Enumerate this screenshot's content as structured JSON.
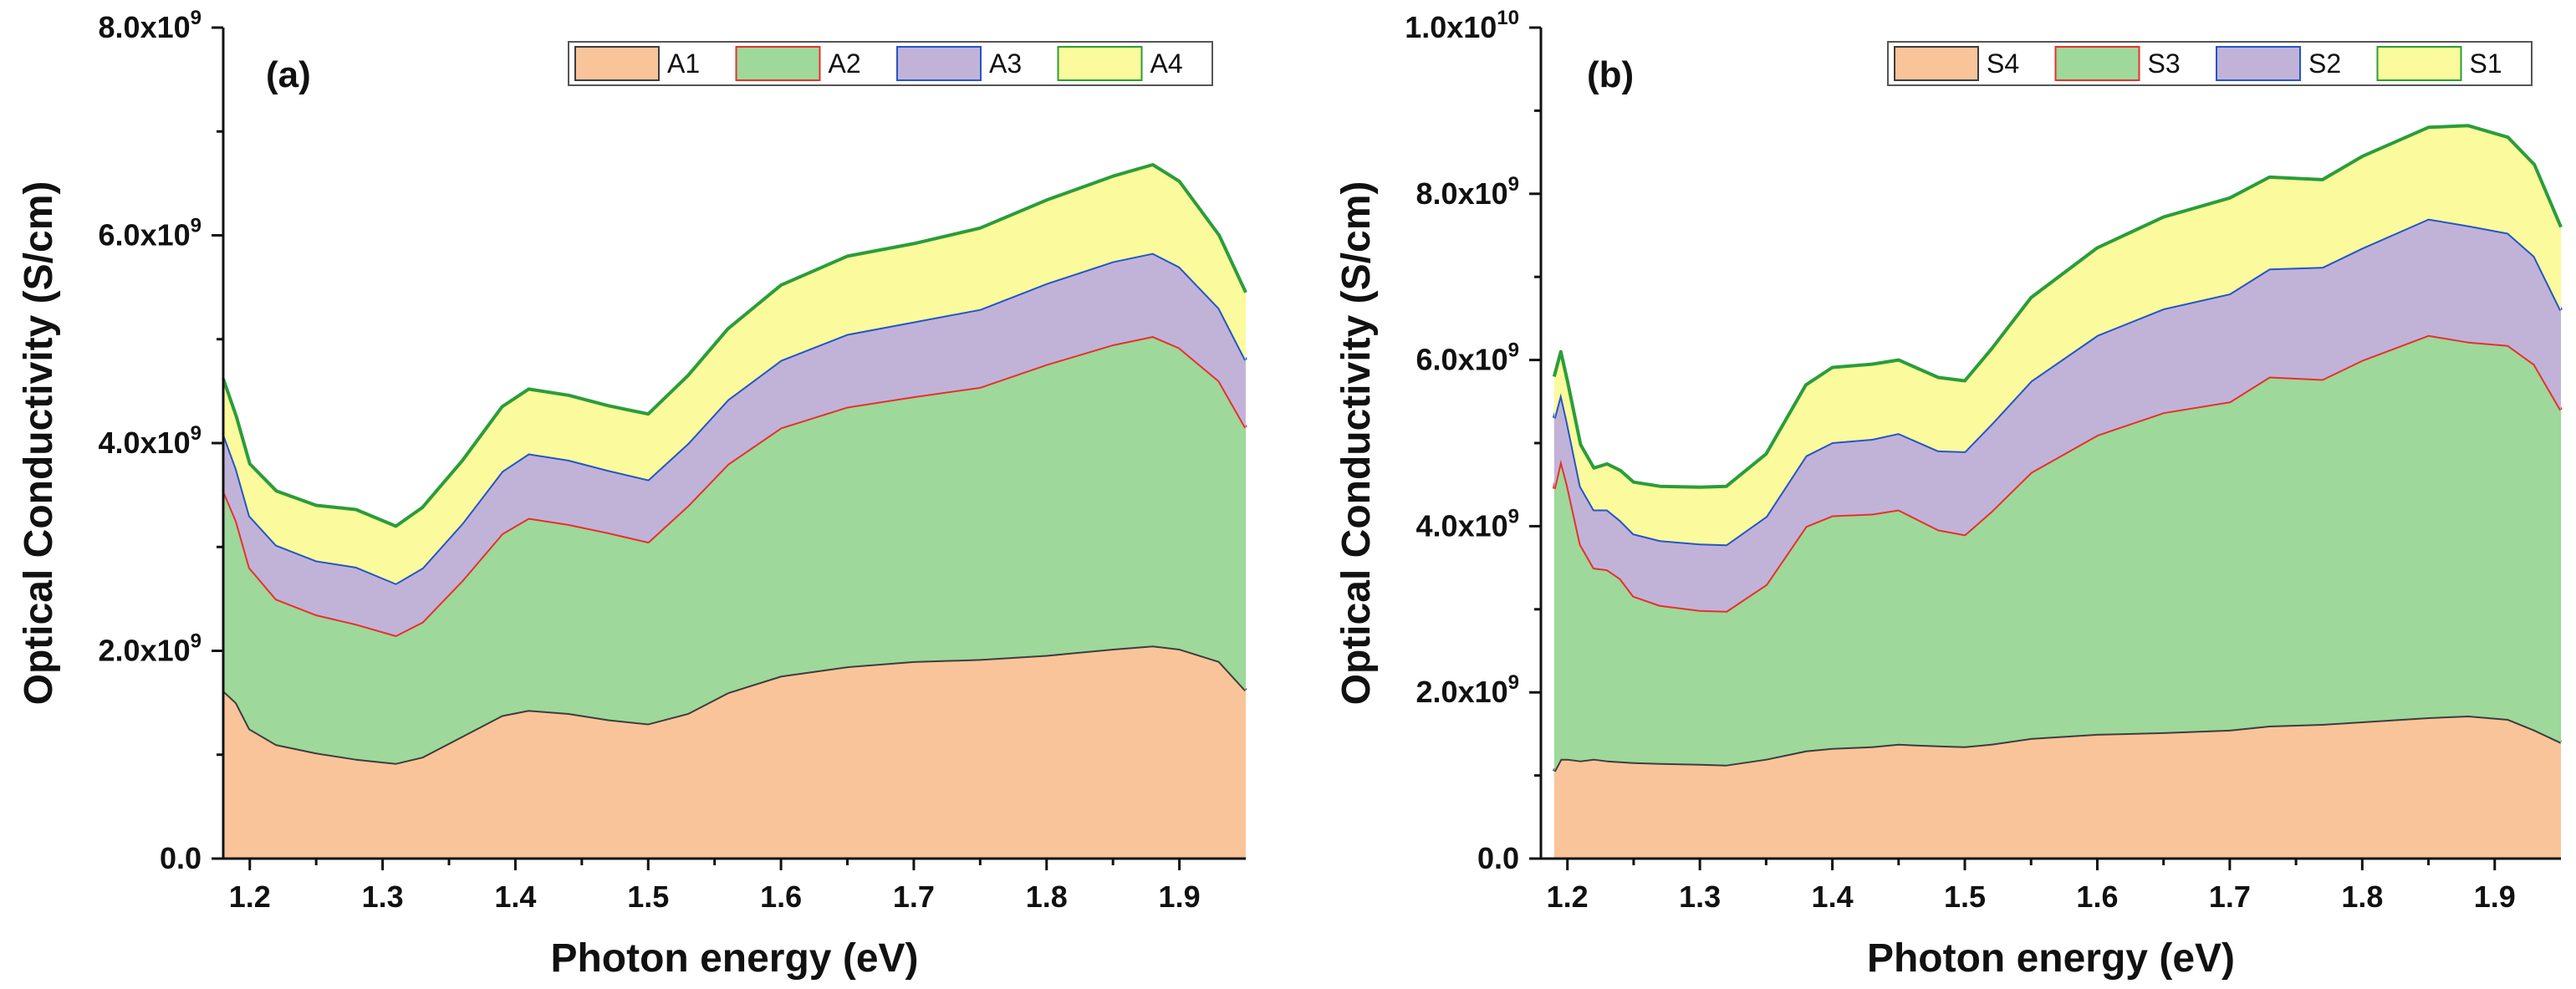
{
  "chart_data": [
    {
      "panel_label": "(a)",
      "type": "area",
      "stacked": true,
      "xlabel": "Photon energy (eV)",
      "ylabel": "Optical Conductivity (S/cm)",
      "xlim": [
        1.18,
        1.95
      ],
      "ylim": [
        0,
        8000000000.0
      ],
      "xticks": [
        "1.2",
        "1.3",
        "1.4",
        "1.5",
        "1.6",
        "1.7",
        "1.8",
        "1.9"
      ],
      "yticks": [
        {
          "mant": "0.0",
          "exp": ""
        },
        {
          "mant": "2.0x10",
          "exp": "9"
        },
        {
          "mant": "4.0x10",
          "exp": "9"
        },
        {
          "mant": "6.0x10",
          "exp": "9"
        },
        {
          "mant": "8.0x10",
          "exp": "9"
        }
      ],
      "legend_position": "top-right",
      "x": [
        1.18,
        1.19,
        1.2,
        1.22,
        1.25,
        1.28,
        1.31,
        1.33,
        1.36,
        1.39,
        1.41,
        1.44,
        1.47,
        1.5,
        1.53,
        1.56,
        1.6,
        1.65,
        1.7,
        1.75,
        1.8,
        1.85,
        1.88,
        1.9,
        1.93,
        1.95
      ],
      "series": [
        {
          "name": "A1",
          "fill": "#f9c49a",
          "line": "#3d3d3d",
          "values": [
            1620000000.0,
            1500000000.0,
            1250000000.0,
            1100000000.0,
            1020000000.0,
            960000000.0,
            920000000.0,
            980000000.0,
            1180000000.0,
            1380000000.0,
            1430000000.0,
            1400000000.0,
            1340000000.0,
            1300000000.0,
            1400000000.0,
            1600000000.0,
            1760000000.0,
            1850000000.0,
            1900000000.0,
            1920000000.0,
            1960000000.0,
            2020000000.0,
            2050000000.0,
            2020000000.0,
            1900000000.0,
            1620000000.0
          ]
        },
        {
          "name": "A2",
          "fill": "#9ed89b",
          "line": "#e8302b",
          "values": [
            1930000000.0,
            1750000000.0,
            1550000000.0,
            1400000000.0,
            1330000000.0,
            1300000000.0,
            1230000000.0,
            1300000000.0,
            1500000000.0,
            1750000000.0,
            1850000000.0,
            1820000000.0,
            1800000000.0,
            1750000000.0,
            2000000000.0,
            2200000000.0,
            2390000000.0,
            2500000000.0,
            2550000000.0,
            2620000000.0,
            2800000000.0,
            2930000000.0,
            2980000000.0,
            2900000000.0,
            2700000000.0,
            2530000000.0
          ]
        },
        {
          "name": "A3",
          "fill": "#c1b3d8",
          "line": "#2455c8",
          "values": [
            550000000.0,
            500000000.0,
            500000000.0,
            520000000.0,
            520000000.0,
            550000000.0,
            500000000.0,
            520000000.0,
            550000000.0,
            600000000.0,
            620000000.0,
            620000000.0,
            600000000.0,
            600000000.0,
            600000000.0,
            620000000.0,
            650000000.0,
            700000000.0,
            720000000.0,
            750000000.0,
            780000000.0,
            800000000.0,
            800000000.0,
            780000000.0,
            700000000.0,
            650000000.0
          ]
        },
        {
          "name": "A4",
          "fill": "#fbfa9c",
          "line": "#2a9d3a",
          "values": [
            520000000.0,
            500000000.0,
            500000000.0,
            520000000.0,
            530000000.0,
            550000000.0,
            550000000.0,
            580000000.0,
            600000000.0,
            620000000.0,
            620000000.0,
            620000000.0,
            620000000.0,
            630000000.0,
            650000000.0,
            680000000.0,
            720000000.0,
            750000000.0,
            750000000.0,
            780000000.0,
            800000000.0,
            820000000.0,
            850000000.0,
            820000000.0,
            700000000.0,
            650000000.0
          ]
        }
      ]
    },
    {
      "panel_label": "(b)",
      "type": "area",
      "stacked": true,
      "xlabel": "Photon energy (eV)",
      "ylabel": "Optical Conductivity (S/cm)",
      "xlim": [
        1.18,
        1.95
      ],
      "ylim": [
        0,
        10000000000.0
      ],
      "xticks": [
        "1.2",
        "1.3",
        "1.4",
        "1.5",
        "1.6",
        "1.7",
        "1.8",
        "1.9"
      ],
      "yticks": [
        {
          "mant": "0.0",
          "exp": ""
        },
        {
          "mant": "2.0x10",
          "exp": "9"
        },
        {
          "mant": "4.0x10",
          "exp": "9"
        },
        {
          "mant": "6.0x10",
          "exp": "9"
        },
        {
          "mant": "8.0x10",
          "exp": "9"
        },
        {
          "mant": "1.0x10",
          "exp": "10"
        }
      ],
      "legend_position": "top-right",
      "x": [
        1.19,
        1.195,
        1.2,
        1.21,
        1.22,
        1.23,
        1.24,
        1.25,
        1.27,
        1.3,
        1.32,
        1.35,
        1.38,
        1.4,
        1.43,
        1.45,
        1.48,
        1.5,
        1.52,
        1.55,
        1.6,
        1.65,
        1.7,
        1.73,
        1.77,
        1.8,
        1.85,
        1.88,
        1.91,
        1.93,
        1.95
      ],
      "series": [
        {
          "name": "S4",
          "fill": "#f9c49a",
          "line": "#3d3d3d",
          "values": [
            1050000000.0,
            1200000000.0,
            1200000000.0,
            1180000000.0,
            1200000000.0,
            1180000000.0,
            1170000000.0,
            1160000000.0,
            1150000000.0,
            1140000000.0,
            1130000000.0,
            1200000000.0,
            1300000000.0,
            1330000000.0,
            1350000000.0,
            1380000000.0,
            1360000000.0,
            1350000000.0,
            1380000000.0,
            1450000000.0,
            1500000000.0,
            1520000000.0,
            1550000000.0,
            1600000000.0,
            1620000000.0,
            1650000000.0,
            1700000000.0,
            1720000000.0,
            1680000000.0,
            1550000000.0,
            1400000000.0
          ]
        },
        {
          "name": "S3",
          "fill": "#9ed89b",
          "line": "#e8302b",
          "values": [
            3400000000.0,
            3600000000.0,
            3300000000.0,
            2600000000.0,
            2300000000.0,
            2300000000.0,
            2200000000.0,
            2000000000.0,
            1900000000.0,
            1850000000.0,
            1850000000.0,
            2100000000.0,
            2700000000.0,
            2800000000.0,
            2800000000.0,
            2820000000.0,
            2600000000.0,
            2550000000.0,
            2800000000.0,
            3200000000.0,
            3600000000.0,
            3850000000.0,
            3950000000.0,
            4200000000.0,
            4150000000.0,
            4350000000.0,
            4600000000.0,
            4500000000.0,
            4500000000.0,
            4400000000.0,
            4000000000.0
          ]
        },
        {
          "name": "S2",
          "fill": "#c1b3d8",
          "line": "#2455c8",
          "values": [
            850000000.0,
            800000000.0,
            750000000.0,
            700000000.0,
            700000000.0,
            720000000.0,
            700000000.0,
            750000000.0,
            780000000.0,
            800000000.0,
            800000000.0,
            820000000.0,
            850000000.0,
            880000000.0,
            900000000.0,
            920000000.0,
            950000000.0,
            1000000000.0,
            1050000000.0,
            1100000000.0,
            1200000000.0,
            1250000000.0,
            1300000000.0,
            1300000000.0,
            1350000000.0,
            1350000000.0,
            1400000000.0,
            1400000000.0,
            1350000000.0,
            1300000000.0,
            1200000000.0
          ]
        },
        {
          "name": "S1",
          "fill": "#fbfa9c",
          "line": "#2a9d3a",
          "values": [
            500000000.0,
            500000000.0,
            500000000.0,
            500000000.0,
            500000000.0,
            550000000.0,
            600000000.0,
            620000000.0,
            650000000.0,
            680000000.0,
            700000000.0,
            750000000.0,
            850000000.0,
            900000000.0,
            900000000.0,
            880000000.0,
            880000000.0,
            850000000.0,
            900000000.0,
            1000000000.0,
            1050000000.0,
            1100000000.0,
            1150000000.0,
            1100000000.0,
            1050000000.0,
            1100000000.0,
            1100000000.0,
            1200000000.0,
            1150000000.0,
            1100000000.0,
            1000000000.0
          ]
        }
      ]
    }
  ]
}
